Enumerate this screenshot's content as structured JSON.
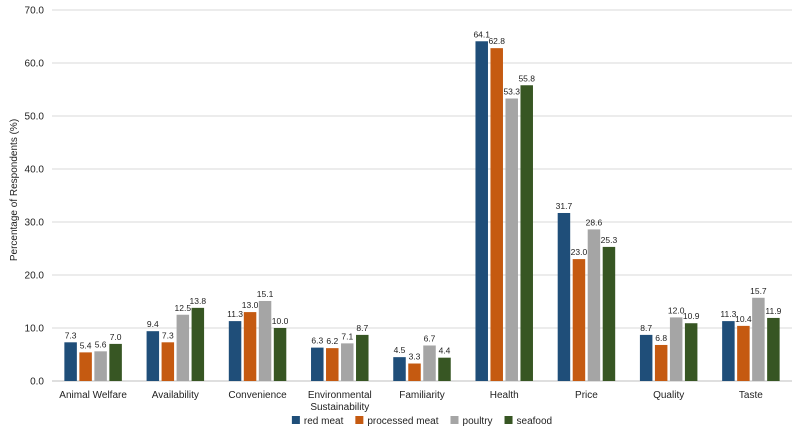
{
  "chart_data": {
    "type": "bar",
    "title": "",
    "xlabel": "",
    "ylabel": "Percentage of Respondents (%)",
    "ylim": [
      0,
      70
    ],
    "yticks": [
      "0.0",
      "10.0",
      "20.0",
      "30.0",
      "40.0",
      "50.0",
      "60.0",
      "70.0"
    ],
    "grid": true,
    "legend_position": "bottom",
    "categories": [
      [
        "Animal Welfare"
      ],
      [
        "Availability"
      ],
      [
        "Convenience"
      ],
      [
        "Environmental",
        "Sustainability"
      ],
      [
        "Familiarity"
      ],
      [
        "Health"
      ],
      [
        "Price"
      ],
      [
        "Quality"
      ],
      [
        "Taste"
      ]
    ],
    "series": [
      {
        "name": "red meat",
        "color": "#1f4e79",
        "values": [
          7.3,
          9.4,
          11.3,
          6.3,
          4.5,
          64.1,
          31.7,
          8.7,
          11.3
        ]
      },
      {
        "name": "processed meat",
        "color": "#c55a11",
        "values": [
          5.4,
          7.3,
          13.0,
          6.2,
          3.3,
          62.8,
          23.0,
          6.8,
          10.4
        ]
      },
      {
        "name": "poultry",
        "color": "#a5a5a5",
        "values": [
          5.6,
          12.5,
          15.1,
          7.1,
          6.7,
          53.3,
          28.6,
          12.0,
          15.7
        ]
      },
      {
        "name": "seafood",
        "color": "#375623",
        "values": [
          7.0,
          13.8,
          10.0,
          8.7,
          4.4,
          55.8,
          25.3,
          10.9,
          11.9
        ]
      }
    ]
  }
}
